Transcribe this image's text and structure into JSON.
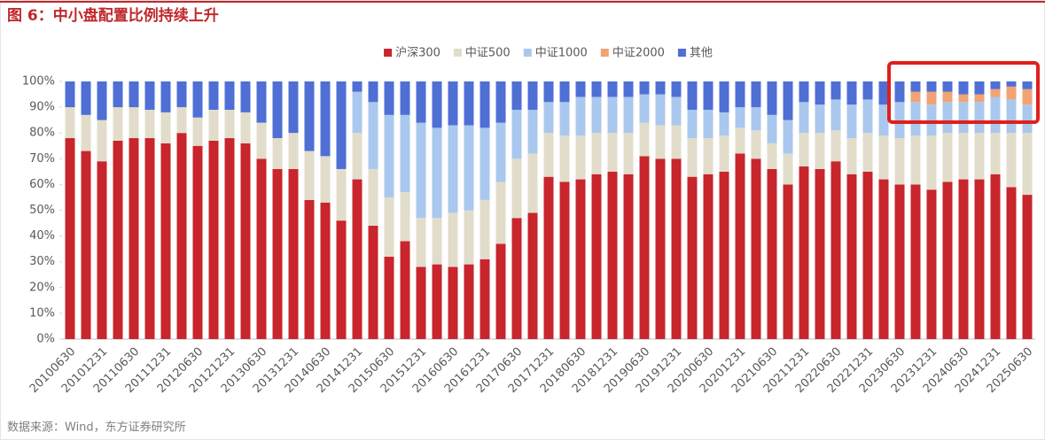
{
  "chart_data": {
    "type": "bar",
    "stacked": true,
    "title": "图 6：中小盘配置比例持续上升",
    "source": "数据来源：Wind，东方证券研究所",
    "categories": [
      "20100630",
      null,
      "20101231",
      null,
      "20110630",
      null,
      "20111231",
      null,
      "20120630",
      null,
      "20121231",
      null,
      "20130630",
      null,
      "20131231",
      null,
      "20140630",
      null,
      "20141231",
      null,
      "20150630",
      null,
      "20151231",
      null,
      "20160630",
      null,
      "20161231",
      null,
      "20170630",
      null,
      "20171231",
      null,
      "20180630",
      null,
      "20181231",
      null,
      "20190630",
      null,
      "20191231",
      null,
      "20200630",
      null,
      "20201231",
      null,
      "20210630",
      null,
      "20211231",
      null,
      "20220630",
      null,
      "20221231",
      null,
      "20230630",
      null,
      "20231231",
      null,
      "20240630",
      null,
      "20241231",
      null,
      "20250630"
    ],
    "series": [
      {
        "name": "沪深300",
        "color": "#c8252c",
        "values": [
          78,
          73,
          69,
          77,
          78,
          78,
          76,
          80,
          75,
          77,
          78,
          76,
          70,
          66,
          66,
          54,
          53,
          46,
          62,
          44,
          32,
          38,
          28,
          29,
          28,
          29,
          31,
          37,
          47,
          49,
          63,
          61,
          62,
          64,
          65,
          64,
          71,
          70,
          70,
          63,
          64,
          65,
          72,
          70,
          66,
          60,
          67,
          66,
          69,
          64,
          65,
          62,
          60,
          60,
          58,
          61,
          62,
          62,
          64,
          59,
          56
        ]
      },
      {
        "name": "中证500",
        "color": "#e2ddcb",
        "values": [
          12,
          14,
          16,
          13,
          12,
          11,
          12,
          10,
          11,
          12,
          11,
          12,
          14,
          12,
          14,
          19,
          18,
          20,
          18,
          22,
          23,
          19,
          19,
          18,
          21,
          21,
          23,
          24,
          23,
          23,
          17,
          18,
          17,
          16,
          15,
          16,
          13,
          13,
          13,
          15,
          14,
          14,
          10,
          11,
          10,
          12,
          13,
          14,
          12,
          14,
          15,
          17,
          18,
          19,
          21,
          19,
          18,
          18,
          16,
          21,
          24
        ]
      },
      {
        "name": "中证1000",
        "color": "#aac8ee",
        "values": [
          null,
          null,
          null,
          null,
          null,
          null,
          null,
          null,
          null,
          null,
          null,
          null,
          null,
          null,
          null,
          null,
          null,
          null,
          16,
          26,
          32,
          30,
          37,
          35,
          34,
          33,
          28,
          23,
          19,
          17,
          12,
          13,
          15,
          14,
          14,
          14,
          11,
          12,
          11,
          11,
          11,
          9,
          8,
          9,
          11,
          13,
          12,
          11,
          12,
          13,
          13,
          12,
          14,
          13,
          12,
          12,
          12,
          12,
          14,
          13,
          11
        ]
      },
      {
        "name": "中证2000",
        "color": "#f1a374",
        "values": [
          null,
          null,
          null,
          null,
          null,
          null,
          null,
          null,
          null,
          null,
          null,
          null,
          null,
          null,
          null,
          null,
          null,
          null,
          null,
          null,
          null,
          null,
          null,
          null,
          null,
          null,
          null,
          null,
          null,
          null,
          null,
          null,
          null,
          null,
          null,
          null,
          null,
          null,
          null,
          null,
          null,
          null,
          null,
          null,
          null,
          null,
          null,
          null,
          null,
          null,
          null,
          null,
          null,
          4,
          5,
          4,
          3,
          3,
          3,
          5,
          6
        ]
      },
      {
        "name": "其他",
        "color": "#4f6fd5",
        "values": [
          10,
          13,
          15,
          10,
          10,
          11,
          12,
          10,
          14,
          11,
          11,
          12,
          16,
          22,
          20,
          27,
          29,
          34,
          4,
          8,
          13,
          13,
          16,
          18,
          17,
          17,
          18,
          16,
          11,
          11,
          8,
          8,
          6,
          6,
          6,
          6,
          5,
          5,
          6,
          11,
          11,
          12,
          10,
          10,
          13,
          15,
          8,
          9,
          7,
          9,
          7,
          9,
          8,
          4,
          4,
          4,
          5,
          5,
          3,
          2,
          3
        ]
      }
    ],
    "ylim": [
      0,
      100
    ],
    "yticks": [
      {
        "value": 0,
        "label": "0%"
      },
      {
        "value": 10,
        "label": "10%"
      },
      {
        "value": 20,
        "label": "20%"
      },
      {
        "value": 30,
        "label": "30%"
      },
      {
        "value": 40,
        "label": "40%"
      },
      {
        "value": 50,
        "label": "50%"
      },
      {
        "value": 60,
        "label": "60%"
      },
      {
        "value": 70,
        "label": "70%"
      },
      {
        "value": 80,
        "label": "80%"
      },
      {
        "value": 90,
        "label": "90%"
      },
      {
        "value": 100,
        "label": "100%"
      }
    ],
    "legend": "top"
  }
}
